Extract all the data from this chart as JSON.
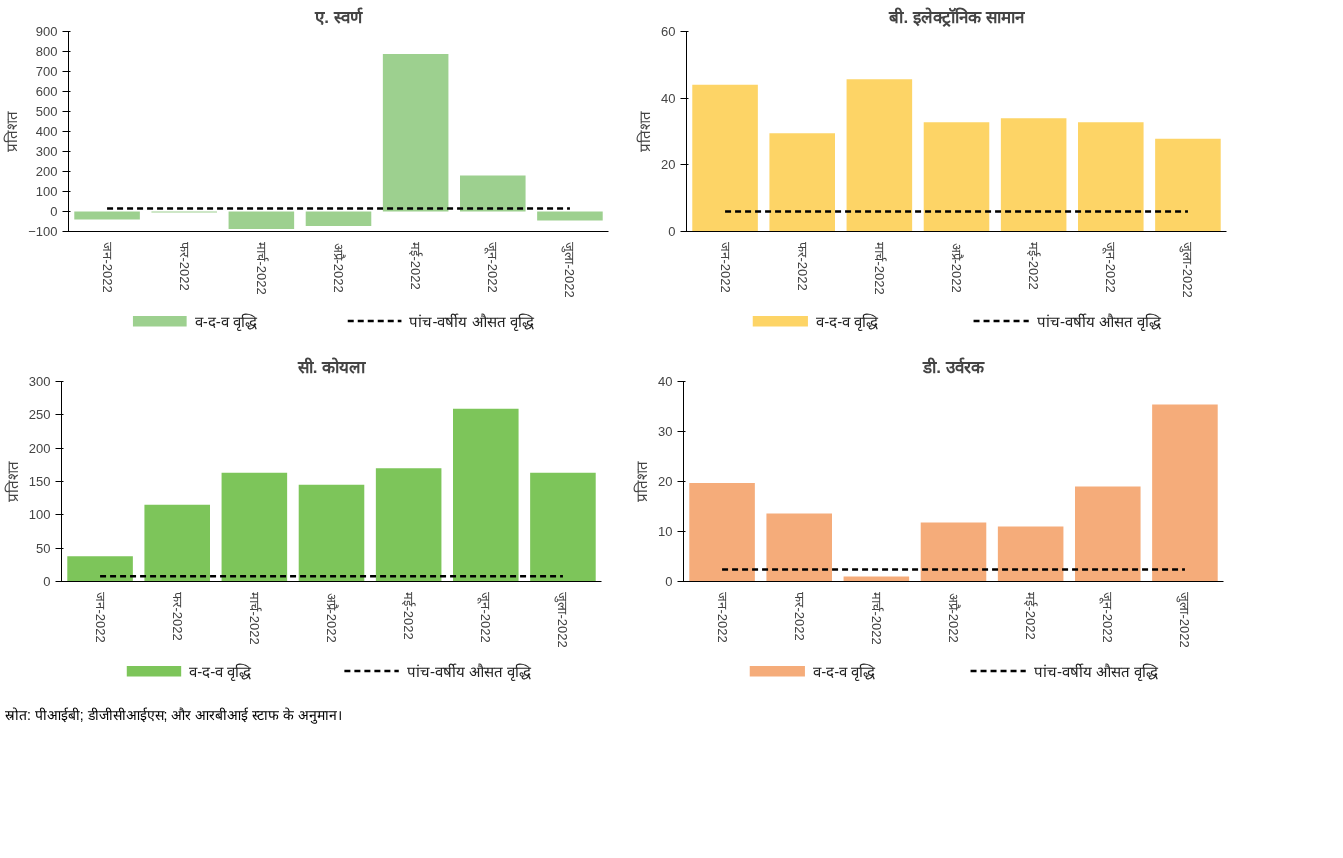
{
  "chart_data": [
    {
      "type": "bar",
      "title": "ए. स्वर्ण",
      "ylabel": "प्रतिशत",
      "categories": [
        "जन-2022",
        "फर-2022",
        "मार्च-2022",
        "अप्रै-2022",
        "मई-2022",
        "जून-2022",
        "जुला-2022"
      ],
      "ylim": [
        -100,
        900
      ],
      "yticks": [
        -100,
        0,
        100,
        200,
        300,
        400,
        500,
        600,
        700,
        800,
        900
      ],
      "grid": false,
      "legend": "bottom",
      "series": [
        {
          "name": "व-द-व वृद्धि",
          "color": "#9dd08f",
          "values": [
            -40,
            -5,
            -88,
            -72,
            788,
            180,
            -45
          ]
        },
        {
          "name": "पांच-वर्षीय औसत वृद्धि",
          "type": "line",
          "line_style": "dashed",
          "color": "#000000",
          "values": [
            15,
            15,
            15,
            15,
            15,
            15,
            15
          ]
        }
      ]
    },
    {
      "type": "bar",
      "title": "बी. इलेक्ट्रॉनिक सामान",
      "ylabel": "प्रतिशत",
      "categories": [
        "जन-2022",
        "फर-2022",
        "मार्च-2022",
        "अप्रै-2022",
        "मई-2022",
        "जून-2022",
        "जुला-2022"
      ],
      "ylim": [
        0,
        60
      ],
      "yticks": [
        0,
        20,
        40,
        60
      ],
      "grid": false,
      "legend": "bottom",
      "series": [
        {
          "name": "व-द-व वृद्धि",
          "color": "#fdd466",
          "values": [
            44,
            29.5,
            45.7,
            32.8,
            34,
            32.8,
            27.8
          ]
        },
        {
          "name": "पांच-वर्षीय औसत वृद्धि",
          "type": "line",
          "line_style": "dashed",
          "color": "#000000",
          "values": [
            6,
            6,
            6,
            6,
            6,
            6,
            6
          ]
        }
      ]
    },
    {
      "type": "bar",
      "title": "सी. कोयला",
      "ylabel": "प्रतिशत",
      "categories": [
        "जन-2022",
        "फर-2022",
        "मार्च-2022",
        "अप्रै-2022",
        "मई-2022",
        "जून-2022",
        "जुला-2022"
      ],
      "ylim": [
        0,
        300
      ],
      "yticks": [
        0,
        50,
        100,
        150,
        200,
        250,
        300
      ],
      "grid": false,
      "legend": "bottom",
      "series": [
        {
          "name": "व-द-व वृद्धि",
          "color": "#7dc55a",
          "values": [
            38,
            115,
            163,
            145,
            170,
            259,
            163
          ]
        },
        {
          "name": "पांच-वर्षीय औसत वृद्धि",
          "type": "line",
          "line_style": "dashed",
          "color": "#000000",
          "values": [
            8,
            8,
            8,
            8,
            8,
            8,
            8
          ]
        }
      ],
      "annotations": [
        "स्रोत: पीआईबी; डीजीसीआईएस; और आरबीआई स्टाफ के अनुमान।"
      ]
    },
    {
      "type": "bar",
      "title": "डी. उर्वरक",
      "ylabel": "प्रतिशत",
      "categories": [
        "जन-2022",
        "फर-2022",
        "मार्च-2022",
        "अप्रै-2022",
        "मई-2022",
        "जून-2022",
        "जुला-2022"
      ],
      "ylim": [
        0,
        40
      ],
      "yticks": [
        0,
        10,
        20,
        30,
        40
      ],
      "grid": false,
      "legend": "bottom",
      "series": [
        {
          "name": "व-द-व वृद्धि",
          "color": "#f5ac7a",
          "values": [
            19.7,
            13.6,
            1,
            11.8,
            11,
            19,
            35.4
          ]
        },
        {
          "name": "पांच-वर्षीय औसत वृद्धि",
          "type": "line",
          "line_style": "dashed",
          "color": "#000000",
          "values": [
            2.4,
            2.4,
            2.4,
            2.4,
            2.4,
            2.4,
            2.4
          ]
        }
      ]
    }
  ]
}
